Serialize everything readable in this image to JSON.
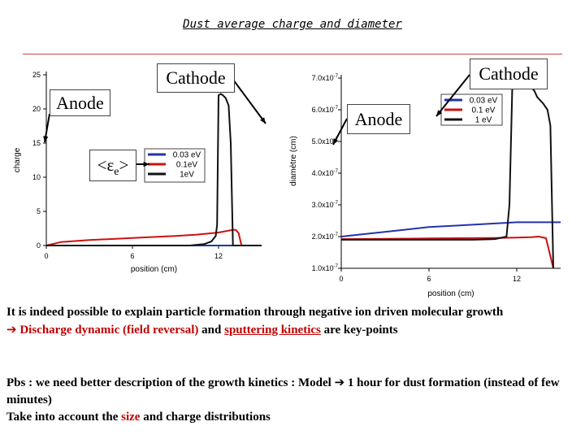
{
  "page_title": "Dust average charge and diameter",
  "chart_data": [
    {
      "type": "line",
      "ylabel": "charge",
      "xlabel": "position (cm)",
      "xlim": [
        0,
        15
      ],
      "ylim": [
        0,
        25
      ],
      "xticks": [
        "0",
        "6",
        "12"
      ],
      "xtick_values": [
        0,
        6,
        12
      ],
      "yticks": [
        "0",
        "5",
        "10",
        "15",
        "20",
        "25"
      ],
      "ytick_values": [
        0,
        5,
        10,
        15,
        20,
        25
      ],
      "legend_title": "<εe>",
      "series": [
        {
          "name": "0.03 eV",
          "color": "#2233aa",
          "x": [
            0,
            2,
            4,
            6,
            8,
            10,
            10.5,
            11,
            11.8,
            12,
            12.5,
            12.8,
            13.0,
            13.1,
            13.2,
            15
          ],
          "y": [
            0,
            0,
            0,
            0,
            0,
            0,
            0,
            0,
            0,
            0,
            0,
            0,
            0,
            0,
            0,
            0
          ]
        },
        {
          "name": "0.1eV",
          "color": "#cc1111",
          "x": [
            0,
            1,
            3,
            5,
            7,
            9,
            10.5,
            11.5,
            12,
            12.5,
            13.0,
            13.2,
            13.4,
            13.6,
            15
          ],
          "y": [
            0,
            0.5,
            0.8,
            1.0,
            1.2,
            1.4,
            1.6,
            1.8,
            1.9,
            2.1,
            2.3,
            2.3,
            1.8,
            0,
            0
          ]
        },
        {
          "name": "1eV",
          "color": "#111111",
          "x": [
            0,
            2,
            5,
            8,
            10,
            11,
            11.5,
            11.8,
            11.9,
            12.0,
            12.15,
            12.3,
            12.5,
            12.7,
            12.85,
            13.0,
            15
          ],
          "y": [
            0,
            0,
            0,
            0,
            0,
            0.2,
            0.6,
            1.4,
            3.0,
            22,
            22.2,
            22.0,
            21.6,
            20.5,
            15.0,
            0,
            0
          ]
        }
      ],
      "annotations": [
        "Cathode",
        "Anode"
      ]
    },
    {
      "type": "line",
      "ylabel": "diamètre (cm)",
      "xlabel": "position (cm)",
      "xlim": [
        0,
        15
      ],
      "ylim": [
        1e-07,
        7e-07
      ],
      "xticks": [
        "0",
        "6",
        "12"
      ],
      "xtick_values": [
        0,
        6,
        12
      ],
      "yticks": [
        "1.0x10",
        "2.0x10",
        "3.0x10",
        "4.0x10",
        "5.0x10",
        "6.0x10",
        "7.0x10"
      ],
      "ytick_exponent": "-7",
      "ytick_values": [
        1,
        2,
        3,
        4,
        5,
        6,
        7
      ],
      "series": [
        {
          "name": "0.03 eV",
          "color": "#2233aa",
          "x": [
            0,
            2,
            4,
            6,
            8,
            10,
            12,
            14,
            15
          ],
          "y": [
            2.0,
            2.1,
            2.2,
            2.3,
            2.35,
            2.4,
            2.45,
            2.45,
            2.45
          ]
        },
        {
          "name": "0.1 eV",
          "color": "#cc1111",
          "x": [
            0,
            3,
            6,
            9,
            11,
            12,
            13,
            13.5,
            14.0,
            14.5
          ],
          "y": [
            1.92,
            1.93,
            1.94,
            1.95,
            1.96,
            1.97,
            1.98,
            2.0,
            1.95,
            1.0
          ]
        },
        {
          "name": "1 eV",
          "color": "#111111",
          "x": [
            0,
            3,
            6,
            9,
            10.5,
            11.3,
            11.5,
            11.7,
            11.8,
            12.0,
            12.3,
            12.6,
            13.0,
            13.2,
            13.4,
            13.8,
            14.1,
            14.3,
            14.5
          ],
          "y": [
            1.9,
            1.9,
            1.9,
            1.9,
            1.92,
            2.0,
            3.0,
            6.8,
            6.9,
            6.9,
            6.85,
            6.8,
            6.7,
            6.6,
            6.4,
            6.2,
            6.0,
            5.5,
            1.0
          ]
        }
      ],
      "annotations": [
        "Cathode",
        "Anode"
      ]
    }
  ],
  "labels": {
    "cathode_left": "Cathode",
    "anode_left": "Anode",
    "cathode_right": "Cathode",
    "anode_right": "Anode",
    "ee_symbol": "<εe>",
    "ee_base": "<ε",
    "ee_sub": "e",
    "ee_close": ">"
  },
  "text": {
    "line1": "It is indeed possible to explain particle formation through negative ion driven molecular growth",
    "line2_arrow": "➔",
    "line2_a": "Discharge dynamic (field reversal)",
    "line2_b": " and ",
    "line2_c": "sputtering kinetics",
    "line2_d": " are key-points",
    "pbs_a": "Pbs : we need better description of the growth kinetics : Model ",
    "pbs_arrow": "➔",
    "pbs_b": " 1 hour for dust formation (instead of few minutes)",
    "take_a": "Take into account the ",
    "take_size": "size",
    "take_b": " and charge distributions"
  }
}
